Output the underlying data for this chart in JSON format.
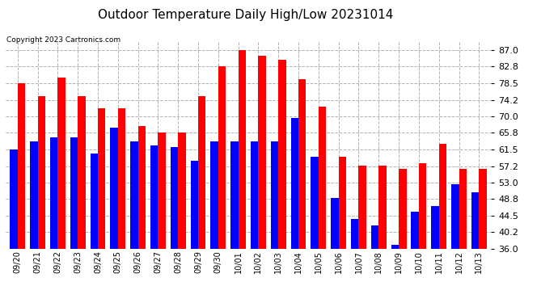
{
  "title": "Outdoor Temperature Daily High/Low 20231014",
  "copyright": "Copyright 2023 Cartronics.com",
  "dates": [
    "09/20",
    "09/21",
    "09/22",
    "09/23",
    "09/24",
    "09/25",
    "09/26",
    "09/27",
    "09/28",
    "09/29",
    "09/30",
    "10/01",
    "10/02",
    "10/03",
    "10/04",
    "10/05",
    "10/06",
    "10/07",
    "10/08",
    "10/09",
    "10/10",
    "10/11",
    "10/12",
    "10/13"
  ],
  "high": [
    78.5,
    75.2,
    80.0,
    75.2,
    72.0,
    72.0,
    67.5,
    65.8,
    65.8,
    75.2,
    82.8,
    87.0,
    85.5,
    84.5,
    79.5,
    72.5,
    59.5,
    57.2,
    57.2,
    56.5,
    58.0,
    63.0,
    56.5,
    56.5
  ],
  "low": [
    61.5,
    63.5,
    64.5,
    64.5,
    60.5,
    67.0,
    63.5,
    62.5,
    62.0,
    58.5,
    63.5,
    63.5,
    63.5,
    63.5,
    69.5,
    59.5,
    49.0,
    43.5,
    42.0,
    37.0,
    45.5,
    47.0,
    52.5,
    50.5
  ],
  "ylim_min": 36.0,
  "ylim_max": 89.0,
  "yticks": [
    36.0,
    40.2,
    44.5,
    48.8,
    53.0,
    57.2,
    61.5,
    65.8,
    70.0,
    74.2,
    78.5,
    82.8,
    87.0
  ],
  "high_color": "#ff0000",
  "low_color": "#0000ff",
  "bg_color": "#ffffff",
  "grid_color": "#aaaaaa",
  "title_fontsize": 11,
  "tick_fontsize": 8,
  "bar_width": 0.38
}
